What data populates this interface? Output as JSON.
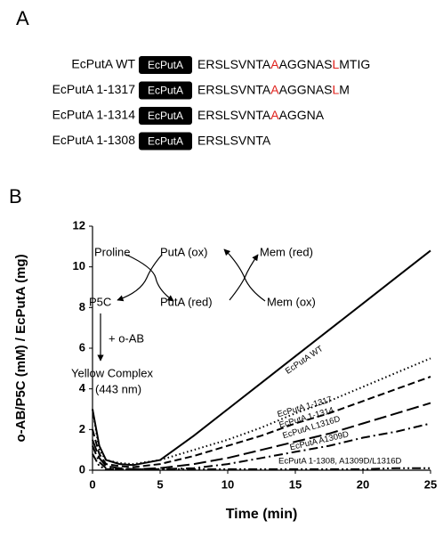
{
  "panel_a": {
    "label": "A",
    "highlight_color": "#e0201b",
    "rows": [
      {
        "name": "EcPutA WT",
        "tag": "EcPutA",
        "sequence": [
          {
            "text": "ERSLSVNTA"
          },
          {
            "text": "A",
            "highlight": true
          },
          {
            "text": "AGGNAS"
          },
          {
            "text": "L",
            "highlight": true
          },
          {
            "text": "MTIG"
          }
        ]
      },
      {
        "name": "EcPutA 1-1317",
        "tag": "EcPutA",
        "sequence": [
          {
            "text": "ERSLSVNTA"
          },
          {
            "text": "A",
            "highlight": true
          },
          {
            "text": "AGGNAS"
          },
          {
            "text": "L",
            "highlight": true
          },
          {
            "text": "M"
          }
        ]
      },
      {
        "name": "EcPutA 1-1314",
        "tag": "EcPutA",
        "sequence": [
          {
            "text": "ERSLSVNTA"
          },
          {
            "text": "A",
            "highlight": true
          },
          {
            "text": "AGGNA"
          }
        ]
      },
      {
        "name": "EcPutA 1-1308",
        "tag": "EcPutA",
        "sequence": [
          {
            "text": "ERSLSVNTA"
          }
        ]
      }
    ]
  },
  "chart_data": {
    "type": "line",
    "panel_label": "B",
    "x_label": "Time (min)",
    "y_label": "o-AB/P5C (mM) / EcPutA (mg)",
    "xlim": [
      0,
      25
    ],
    "xticks": [
      0,
      5,
      10,
      15,
      20,
      25
    ],
    "ylim": [
      0,
      12
    ],
    "yticks": [
      0,
      2,
      4,
      6,
      8,
      10,
      12
    ],
    "x": [
      0,
      0.5,
      1,
      2,
      3,
      5,
      7.5,
      10,
      12.5,
      15,
      17.5,
      20,
      22.5,
      25
    ],
    "series": [
      {
        "name": "EcPutA WT",
        "color": "#000000",
        "line_style": "solid",
        "values": [
          3.0,
          1.2,
          0.5,
          0.3,
          0.25,
          0.5,
          1.7,
          3.0,
          4.3,
          5.6,
          6.9,
          8.2,
          9.5,
          10.8
        ]
      },
      {
        "name": "EcPutA 1-1317",
        "color": "#000000",
        "line_style": "dotted",
        "values": [
          3.0,
          1.0,
          0.5,
          0.35,
          0.3,
          0.5,
          1.0,
          1.5,
          2.1,
          2.8,
          3.4,
          4.1,
          4.8,
          5.5
        ]
      },
      {
        "name": "EcPutA 1-1314",
        "color": "#000000",
        "line_style": "dashed",
        "values": [
          2.0,
          0.8,
          0.3,
          0.2,
          0.15,
          0.3,
          0.7,
          1.2,
          1.7,
          2.3,
          2.8,
          3.4,
          4.0,
          4.6
        ]
      },
      {
        "name": "EcPutA L1316D",
        "color": "#000000",
        "line_style": "longdash",
        "values": [
          1.5,
          0.6,
          0.2,
          0.1,
          0.05,
          0.1,
          0.3,
          0.6,
          1.0,
          1.4,
          1.8,
          2.3,
          2.8,
          3.3
        ]
      },
      {
        "name": "EcPutA A1309D",
        "color": "#000000",
        "line_style": "dashdot",
        "values": [
          1.2,
          0.4,
          0.1,
          0.05,
          0.05,
          0.05,
          0.1,
          0.3,
          0.6,
          0.9,
          1.2,
          1.6,
          1.9,
          2.3
        ]
      },
      {
        "name": "EcPutA 1-1308, A1309D/L1316D",
        "color": "#000000",
        "line_style": "dashdotdot",
        "values": [
          0.8,
          0.2,
          0.05,
          0.05,
          0.05,
          0.05,
          0.05,
          0.05,
          0.05,
          0.05,
          0.05,
          0.05,
          0.1,
          0.1
        ]
      }
    ],
    "scheme": {
      "proline": "Proline",
      "puta_ox": "PutA (ox)",
      "mem_red": "Mem (red)",
      "p5c": "P5C",
      "puta_red": "PutA (red)",
      "mem_ox": "Mem (ox)",
      "oab": "+ o-AB",
      "complex": "Yellow Complex",
      "wavelength": "(443 nm)"
    }
  }
}
